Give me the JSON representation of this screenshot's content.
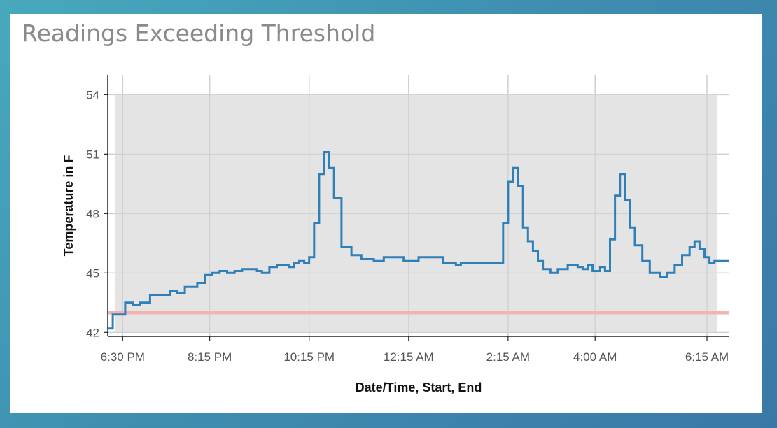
{
  "title": "Readings Exceeding Threshold",
  "chart_data": {
    "type": "line",
    "title": "Readings Exceeding Threshold",
    "xlabel": "Date/Time, Start, End",
    "ylabel": "Temperature in F",
    "x_ticks": [
      "6:30 PM",
      "8:15 PM",
      "10:15 PM",
      "12:15 AM",
      "2:15 AM",
      "4:00 AM",
      "6:15 AM"
    ],
    "y_ticks": [
      "42",
      "45",
      "48",
      "51",
      "54"
    ],
    "ylim": [
      41.8,
      55.0
    ],
    "shaded_range": {
      "y": [
        42,
        54
      ],
      "color": "#e4e4e4"
    },
    "threshold": {
      "value": 43,
      "color": "#f2b3b3"
    },
    "grid": true,
    "series": [
      {
        "color": "#2f7fb8",
        "step": true,
        "x": [
          "6:12 PM",
          "6:18 PM",
          "6:33 PM",
          "6:42 PM",
          "6:51 PM",
          "7:03 PM",
          "7:18 PM",
          "7:27 PM",
          "7:36 PM",
          "7:45 PM",
          "8:00 PM",
          "8:09 PM",
          "8:18 PM",
          "8:27 PM",
          "8:36 PM",
          "8:45 PM",
          "8:54 PM",
          "9:03 PM",
          "9:12 PM",
          "9:18 PM",
          "9:27 PM",
          "9:36 PM",
          "9:45 PM",
          "9:51 PM",
          "9:57 PM",
          "10:03 PM",
          "10:09 PM",
          "10:15 PM",
          "10:21 PM",
          "10:27 PM",
          "10:33 PM",
          "10:39 PM",
          "10:45 PM",
          "10:54 PM",
          "11:06 PM",
          "11:18 PM",
          "11:33 PM",
          "11:39 PM",
          "11:45 PM",
          "12:00 AM",
          "12:09 AM",
          "12:18 AM",
          "12:27 AM",
          "12:42 AM",
          "12:57 AM",
          "1:12 AM",
          "1:18 AM",
          "1:27 AM",
          "1:36 AM",
          "2:09 AM",
          "2:15 AM",
          "2:21 AM",
          "2:27 AM",
          "2:33 AM",
          "2:39 AM",
          "2:45 AM",
          "2:51 AM",
          "2:57 AM",
          "3:06 AM",
          "3:15 AM",
          "3:27 AM",
          "3:39 AM",
          "3:45 AM",
          "3:51 AM",
          "3:57 AM",
          "4:06 AM",
          "4:12 AM",
          "4:18 AM",
          "4:24 AM",
          "4:30 AM",
          "4:36 AM",
          "4:42 AM",
          "4:48 AM",
          "4:57 AM",
          "5:06 AM",
          "5:18 AM",
          "5:27 AM",
          "5:36 AM",
          "5:45 AM",
          "5:54 AM",
          "6:00 AM",
          "6:06 AM",
          "6:12 AM",
          "6:18 AM",
          "6:24 AM"
        ],
        "values": [
          42.2,
          42.9,
          43.5,
          43.4,
          43.5,
          43.9,
          43.9,
          44.1,
          44.0,
          44.3,
          44.5,
          44.9,
          45.0,
          45.1,
          45.0,
          45.1,
          45.2,
          45.2,
          45.1,
          45.0,
          45.3,
          45.4,
          45.4,
          45.3,
          45.5,
          45.6,
          45.5,
          45.8,
          47.5,
          50.0,
          51.1,
          50.3,
          48.8,
          46.3,
          45.9,
          45.7,
          45.6,
          45.6,
          45.8,
          45.8,
          45.6,
          45.6,
          45.8,
          45.8,
          45.5,
          45.4,
          45.5,
          45.5,
          45.5,
          47.5,
          49.6,
          50.3,
          49.4,
          47.3,
          46.6,
          46.1,
          45.6,
          45.2,
          45.0,
          45.2,
          45.4,
          45.3,
          45.2,
          45.4,
          45.1,
          45.3,
          45.1,
          46.7,
          48.9,
          50.0,
          48.7,
          47.3,
          46.4,
          45.6,
          45.0,
          44.8,
          45.0,
          45.4,
          45.9,
          46.3,
          46.6,
          46.2,
          45.8,
          45.5,
          45.6
        ]
      }
    ]
  }
}
